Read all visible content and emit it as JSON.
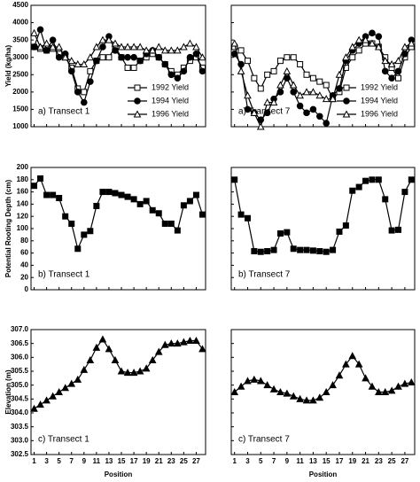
{
  "chart_data": [
    {
      "type": "line",
      "annotation": "a) Transect 1",
      "ylabel": "Yield (kg/ha)",
      "x": [
        1,
        2,
        3,
        4,
        5,
        6,
        7,
        8,
        9,
        10,
        11,
        12,
        13,
        14,
        15,
        16,
        17,
        18,
        19,
        20,
        21,
        22,
        23,
        24,
        25,
        26,
        27,
        28
      ],
      "xlim": [
        0.5,
        28.5
      ],
      "xticks": [
        1,
        3,
        5,
        7,
        9,
        11,
        13,
        15,
        17,
        19,
        21,
        23,
        25,
        27
      ],
      "xtick_labels": false,
      "ylim": [
        1000,
        4500
      ],
      "yticks": [
        1000,
        1500,
        2000,
        2500,
        3000,
        3500,
        4000,
        4500
      ],
      "ytick_labels": true,
      "grid": false,
      "legend": "lower right",
      "series": [
        {
          "name": "1992 Yield",
          "color": "#000000",
          "marker": "square",
          "marker_filled": false,
          "values": [
            3300,
            3250,
            3200,
            3250,
            3100,
            3000,
            2700,
            2100,
            2000,
            2600,
            2900,
            3000,
            3000,
            3300,
            3000,
            2700,
            2700,
            2900,
            3000,
            3100,
            3000,
            2800,
            2600,
            2500,
            2700,
            2900,
            3000,
            2700
          ]
        },
        {
          "name": "1994 Yield",
          "color": "#000000",
          "marker": "circle",
          "marker_filled": true,
          "values": [
            3300,
            3800,
            3200,
            3500,
            3000,
            3100,
            2600,
            2000,
            1700,
            2300,
            2900,
            3300,
            3600,
            3200,
            3000,
            3000,
            3000,
            2900,
            3100,
            3200,
            3000,
            2800,
            2500,
            2400,
            2600,
            3000,
            3100,
            2600
          ]
        },
        {
          "name": "1996 Yield",
          "color": "#000000",
          "marker": "triangle",
          "marker_filled": false,
          "values": [
            3700,
            3300,
            3400,
            3300,
            3300,
            3000,
            2900,
            2800,
            2800,
            3000,
            3300,
            3500,
            3500,
            3400,
            3300,
            3300,
            3300,
            3300,
            3200,
            3200,
            3300,
            3200,
            3200,
            3200,
            3300,
            3400,
            3300,
            3000
          ]
        }
      ]
    },
    {
      "type": "line",
      "annotation": "a) Transect 7",
      "x": [
        1,
        2,
        3,
        4,
        5,
        6,
        7,
        8,
        9,
        10,
        11,
        12,
        13,
        14,
        15,
        16,
        17,
        18,
        19,
        20,
        21,
        22,
        23,
        24,
        25,
        26,
        27,
        28
      ],
      "xlim": [
        0.5,
        28.5
      ],
      "xticks": [
        1,
        3,
        5,
        7,
        9,
        11,
        13,
        15,
        17,
        19,
        21,
        23,
        25,
        27
      ],
      "xtick_labels": false,
      "ylim": [
        1000,
        4500
      ],
      "yticks": [
        1000,
        1500,
        2000,
        2500,
        3000,
        3500,
        4000,
        4500
      ],
      "ytick_labels": false,
      "grid": false,
      "legend": "lower right",
      "series": [
        {
          "name": "1992 Yield",
          "color": "#000000",
          "marker": "square",
          "marker_filled": false,
          "values": [
            3300,
            3200,
            2900,
            2400,
            2100,
            2500,
            2600,
            2900,
            3000,
            3000,
            2800,
            2500,
            2400,
            2300,
            2200,
            1800,
            2000,
            2700,
            3000,
            3200,
            3400,
            3400,
            3300,
            3000,
            2700,
            2400,
            3000,
            3300
          ]
        },
        {
          "name": "1994 Yield",
          "color": "#000000",
          "marker": "circle",
          "marker_filled": true,
          "values": [
            3100,
            2800,
            1500,
            1400,
            1200,
            1400,
            1800,
            2000,
            2400,
            2000,
            1600,
            1400,
            1500,
            1300,
            1100,
            1900,
            2100,
            2900,
            3200,
            3400,
            3600,
            3700,
            3600,
            2600,
            2400,
            2600,
            3100,
            3500
          ]
        },
        {
          "name": "1996 Yield",
          "color": "#000000",
          "marker": "triangle",
          "marker_filled": false,
          "values": [
            3400,
            2600,
            1900,
            1400,
            1000,
            1700,
            1700,
            2200,
            2600,
            2200,
            1900,
            2000,
            2000,
            1900,
            1800,
            1800,
            2500,
            3000,
            3300,
            3500,
            3500,
            3400,
            3300,
            2900,
            2800,
            2900,
            3300,
            3400
          ]
        }
      ]
    },
    {
      "type": "line",
      "annotation": "b) Transect 1",
      "ylabel": "Potential Rooting Depth (cm)",
      "x": [
        1,
        2,
        3,
        4,
        5,
        6,
        7,
        8,
        9,
        10,
        11,
        12,
        13,
        14,
        15,
        16,
        17,
        18,
        19,
        20,
        21,
        22,
        23,
        24,
        25,
        26,
        27,
        28
      ],
      "xlim": [
        0.5,
        28.5
      ],
      "xticks": [
        1,
        3,
        5,
        7,
        9,
        11,
        13,
        15,
        17,
        19,
        21,
        23,
        25,
        27
      ],
      "xtick_labels": false,
      "ylim": [
        0,
        200
      ],
      "yticks": [
        0,
        20,
        40,
        60,
        80,
        100,
        120,
        140,
        160,
        180,
        200
      ],
      "ytick_labels": true,
      "grid": false,
      "color": "#000000",
      "marker": "square",
      "marker_filled": true,
      "values": [
        170,
        182,
        155,
        155,
        150,
        120,
        108,
        67,
        90,
        96,
        137,
        160,
        160,
        158,
        155,
        152,
        148,
        140,
        145,
        130,
        125,
        108,
        108,
        97,
        138,
        145,
        155,
        123
      ]
    },
    {
      "type": "line",
      "annotation": "b) Transect 7",
      "x": [
        1,
        2,
        3,
        4,
        5,
        6,
        7,
        8,
        9,
        10,
        11,
        12,
        13,
        14,
        15,
        16,
        17,
        18,
        19,
        20,
        21,
        22,
        23,
        24,
        25,
        26,
        27,
        28
      ],
      "xlim": [
        0.5,
        28.5
      ],
      "xticks": [
        1,
        3,
        5,
        7,
        9,
        11,
        13,
        15,
        17,
        19,
        21,
        23,
        25,
        27
      ],
      "xtick_labels": false,
      "ylim": [
        0,
        200
      ],
      "yticks": [
        0,
        20,
        40,
        60,
        80,
        100,
        120,
        140,
        160,
        180,
        200
      ],
      "ytick_labels": false,
      "grid": false,
      "color": "#000000",
      "marker": "square",
      "marker_filled": true,
      "values": [
        180,
        123,
        117,
        63,
        62,
        63,
        65,
        92,
        94,
        67,
        65,
        65,
        64,
        63,
        62,
        65,
        95,
        105,
        162,
        168,
        178,
        180,
        180,
        148,
        97,
        98,
        160,
        180
      ]
    },
    {
      "type": "line",
      "annotation": "c) Transect 1",
      "ylabel": "Elevation (m)",
      "xlabel": "Position",
      "x": [
        1,
        2,
        3,
        4,
        5,
        6,
        7,
        8,
        9,
        10,
        11,
        12,
        13,
        14,
        15,
        16,
        17,
        18,
        19,
        20,
        21,
        22,
        23,
        24,
        25,
        26,
        27,
        28
      ],
      "xlim": [
        0.5,
        28.5
      ],
      "xticks": [
        1,
        3,
        5,
        7,
        9,
        11,
        13,
        15,
        17,
        19,
        21,
        23,
        25,
        27
      ],
      "xtick_labels": true,
      "ylim": [
        302.5,
        307
      ],
      "yticks": [
        302.5,
        {
          "value": 303,
          "label": "303.0"
        },
        303.5,
        {
          "value": 304,
          "label": "304.0"
        },
        304.5,
        {
          "value": 305,
          "label": "305.0"
        },
        305.5,
        {
          "value": 306,
          "label": "306.0"
        },
        306.5,
        {
          "value": 307,
          "label": "307.0"
        }
      ],
      "ytick_labels": true,
      "grid": false,
      "color": "#000000",
      "marker": "triangle",
      "marker_filled": true,
      "values": [
        304.15,
        304.3,
        304.45,
        304.6,
        304.75,
        304.9,
        305.05,
        305.2,
        305.55,
        305.9,
        306.35,
        306.65,
        306.3,
        305.9,
        305.5,
        305.45,
        305.45,
        305.5,
        305.6,
        305.9,
        306.2,
        306.45,
        306.5,
        306.5,
        306.55,
        306.6,
        306.6,
        306.3
      ]
    },
    {
      "type": "line",
      "annotation": "c) Transect 7",
      "xlabel": "Position",
      "x": [
        1,
        2,
        3,
        4,
        5,
        6,
        7,
        8,
        9,
        10,
        11,
        12,
        13,
        14,
        15,
        16,
        17,
        18,
        19,
        20,
        21,
        22,
        23,
        24,
        25,
        26,
        27,
        28
      ],
      "xlim": [
        0.5,
        28.5
      ],
      "xticks": [
        1,
        3,
        5,
        7,
        9,
        11,
        13,
        15,
        17,
        19,
        21,
        23,
        25,
        27
      ],
      "xtick_labels": true,
      "ylim": [
        302.5,
        307
      ],
      "yticks": [
        302.5,
        {
          "value": 303,
          "label": "303.0"
        },
        303.5,
        {
          "value": 304,
          "label": "304.0"
        },
        304.5,
        {
          "value": 305,
          "label": "305.0"
        },
        305.5,
        {
          "value": 306,
          "label": "306.0"
        },
        306.5,
        {
          "value": 307,
          "label": "307.0"
        }
      ],
      "ytick_labels": false,
      "grid": false,
      "color": "#000000",
      "marker": "triangle",
      "marker_filled": true,
      "values": [
        304.75,
        304.95,
        305.15,
        305.2,
        305.15,
        305.0,
        304.85,
        304.75,
        304.7,
        304.6,
        304.5,
        304.45,
        304.45,
        304.55,
        304.75,
        305.0,
        305.35,
        305.75,
        306.05,
        305.75,
        305.25,
        304.95,
        304.75,
        304.75,
        304.8,
        304.95,
        305.05,
        305.1
      ]
    }
  ]
}
